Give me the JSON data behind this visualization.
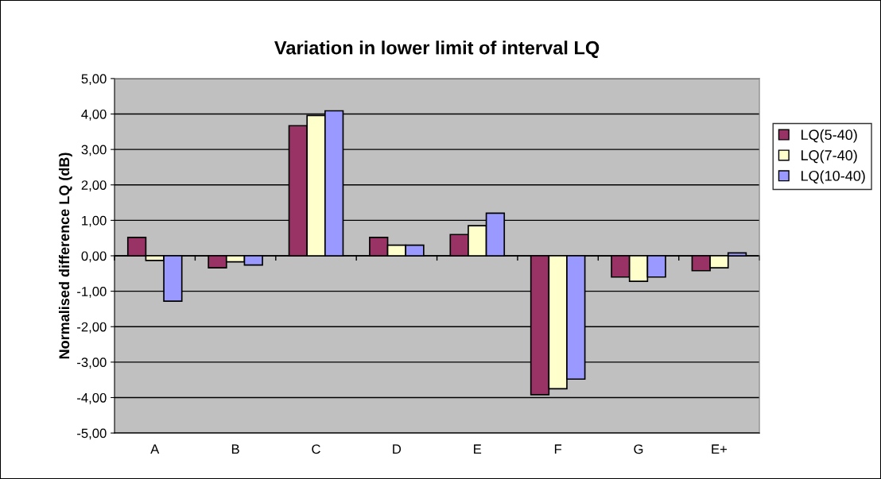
{
  "chart_data": {
    "type": "bar",
    "title": "Variation in lower limit of interval LQ",
    "ylabel": "Normalised difference LQ (dB)",
    "categories": [
      "A",
      "B",
      "C",
      "D",
      "E",
      "F",
      "G",
      "E+"
    ],
    "series": [
      {
        "name": "LQ(5-40)",
        "color": "#993366",
        "values": [
          0.52,
          -0.34,
          3.67,
          0.52,
          0.6,
          -3.92,
          -0.6,
          -0.42
        ]
      },
      {
        "name": "LQ(7-40)",
        "color": "#ffffcc",
        "values": [
          -0.13,
          -0.17,
          3.96,
          0.3,
          0.85,
          -3.75,
          -0.72,
          -0.34
        ]
      },
      {
        "name": "LQ(10-40)",
        "color": "#9999ff",
        "values": [
          -1.28,
          -0.26,
          4.09,
          0.3,
          1.2,
          -3.48,
          -0.6,
          0.08
        ]
      }
    ],
    "ylim": [
      -5,
      5
    ],
    "yticks": [
      {
        "value": -5,
        "label": "-5,00"
      },
      {
        "value": -4,
        "label": "-4,00"
      },
      {
        "value": -3,
        "label": "-3,00"
      },
      {
        "value": -2,
        "label": "-2,00"
      },
      {
        "value": -1,
        "label": "-1,00"
      },
      {
        "value": 0,
        "label": "0,00"
      },
      {
        "value": 1,
        "label": "1,00"
      },
      {
        "value": 2,
        "label": "2,00"
      },
      {
        "value": 3,
        "label": "3,00"
      },
      {
        "value": 4,
        "label": "4,00"
      },
      {
        "value": 5,
        "label": "5,00"
      }
    ],
    "grid": "y",
    "legend": "right"
  }
}
